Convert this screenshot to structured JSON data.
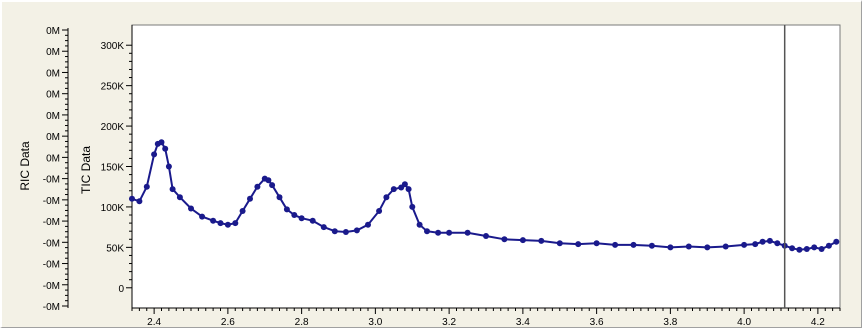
{
  "chart_data": {
    "type": "line",
    "xlabel": "",
    "ylabel": "TIC Data",
    "ylabel_outer": "RIC Data",
    "xlim": [
      2.34,
      4.26
    ],
    "ylim": [
      -25000,
      325000
    ],
    "x_ticks": [
      2.4,
      2.6,
      2.8,
      3.0,
      3.2,
      3.4,
      3.6,
      3.8,
      4.0,
      4.2
    ],
    "x_tick_labels": [
      "2.4",
      "2.6",
      "2.8",
      "3.0",
      "3.2",
      "3.4",
      "3.6",
      "3.8",
      "4.0",
      "4.2"
    ],
    "y_ticks": [
      0,
      50000,
      100000,
      150000,
      200000,
      250000,
      300000
    ],
    "y_tick_labels": [
      "0",
      "50K",
      "100K",
      "150K",
      "200K",
      "250K",
      "300K"
    ],
    "ric_tick_labels": [
      "0M",
      "0M",
      "0M",
      "0M",
      "0M",
      "0M",
      "0M",
      "-0M",
      "-0M",
      "-0M",
      "-0M",
      "-0M",
      "-0M",
      "-0M"
    ],
    "cursor_x": 4.11,
    "grid": false,
    "series": [
      {
        "color": "#1a1a8c",
        "x": [
          2.34,
          2.36,
          2.38,
          2.4,
          2.41,
          2.42,
          2.43,
          2.44,
          2.45,
          2.47,
          2.5,
          2.53,
          2.56,
          2.58,
          2.6,
          2.62,
          2.64,
          2.66,
          2.68,
          2.7,
          2.71,
          2.72,
          2.74,
          2.76,
          2.78,
          2.8,
          2.83,
          2.86,
          2.89,
          2.92,
          2.95,
          2.98,
          3.01,
          3.03,
          3.05,
          3.07,
          3.08,
          3.09,
          3.1,
          3.12,
          3.14,
          3.17,
          3.2,
          3.25,
          3.3,
          3.35,
          3.4,
          3.45,
          3.5,
          3.55,
          3.6,
          3.65,
          3.7,
          3.75,
          3.8,
          3.85,
          3.9,
          3.95,
          4.0,
          4.03,
          4.05,
          4.07,
          4.09,
          4.11,
          4.13,
          4.15,
          4.17,
          4.19,
          4.21,
          4.23,
          4.25
        ],
        "y": [
          110000,
          107000,
          125000,
          165000,
          178000,
          180000,
          172000,
          150000,
          122000,
          112000,
          98000,
          88000,
          83000,
          80000,
          78000,
          80000,
          95000,
          110000,
          125000,
          135000,
          133000,
          127000,
          112000,
          97000,
          90000,
          86000,
          83000,
          75000,
          70000,
          69000,
          71000,
          78000,
          95000,
          112000,
          122000,
          124000,
          128000,
          122000,
          100000,
          78000,
          70000,
          68000,
          68000,
          68000,
          64000,
          60000,
          59000,
          58000,
          55000,
          54000,
          55000,
          53000,
          53000,
          52000,
          50000,
          51000,
          50000,
          51000,
          53000,
          54000,
          57000,
          58000,
          55000,
          52000,
          49000,
          47000,
          48000,
          50000,
          48000,
          52000,
          57000
        ]
      }
    ]
  }
}
